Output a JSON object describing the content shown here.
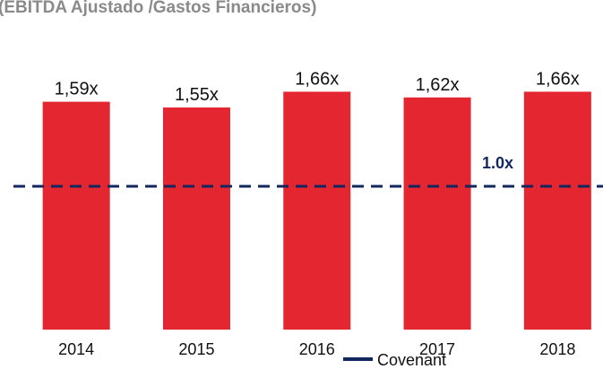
{
  "chart_data": {
    "type": "bar",
    "title": "(EBITDA Ajustado /Gastos Financieros)",
    "categories": [
      "2014",
      "2015",
      "2016",
      "2017",
      "2018"
    ],
    "values": [
      1.59,
      1.55,
      1.66,
      1.62,
      1.66
    ],
    "value_labels": [
      "1,59x",
      "1,55x",
      "1,66x",
      "1,62x",
      "1,66x"
    ],
    "color": "#e3262f",
    "ylim": [
      0,
      2.3
    ],
    "reference_line": {
      "name": "Covenant",
      "value": 1.0,
      "label": "1.0x",
      "color": "#12275e"
    }
  }
}
